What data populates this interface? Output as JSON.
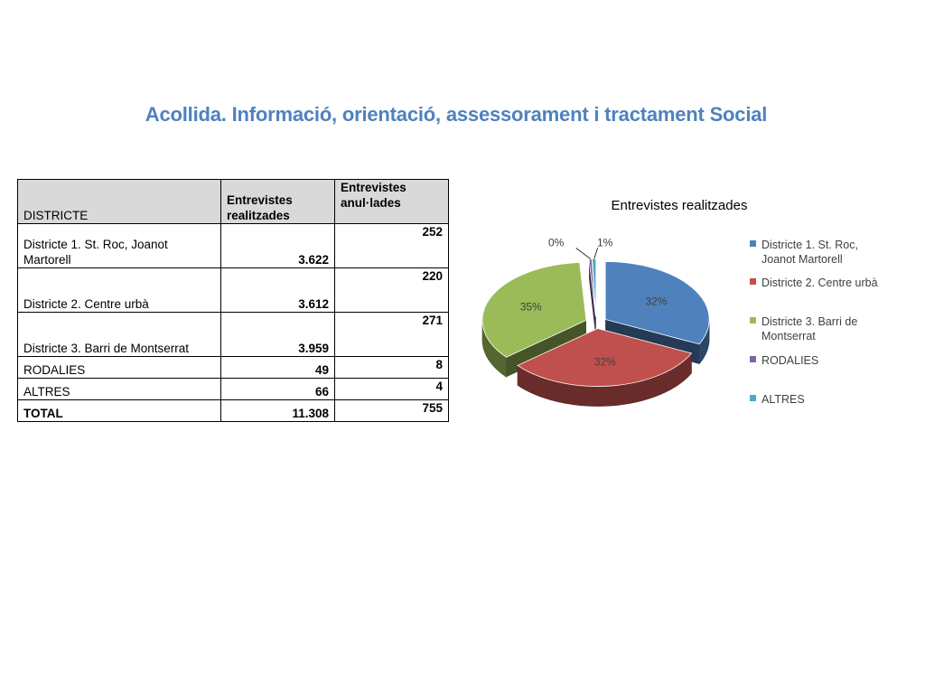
{
  "title": "Acollida. Informació, orientació, assessorament i tractament Social",
  "table": {
    "headers": [
      "DISTRICTE",
      "Entrevistes realitzades",
      "Entrevistes anul·lades"
    ],
    "rows": [
      {
        "district": "Districte 1. St. Roc, Joanot Martorell",
        "realitzades": "3.622",
        "anullades": "252"
      },
      {
        "district": "Districte 2. Centre urbà",
        "realitzades": "3.612",
        "anullades": "220"
      },
      {
        "district": "Districte 3. Barri de Montserrat",
        "realitzades": "3.959",
        "anullades": "271"
      },
      {
        "district": "RODALIES",
        "realitzades": "49",
        "anullades": "8"
      },
      {
        "district": "ALTRES",
        "realitzades": "66",
        "anullades": "4"
      },
      {
        "district": "TOTAL",
        "realitzades": "11.308",
        "anullades": "755"
      }
    ]
  },
  "chart_data": {
    "type": "pie",
    "title": "Entrevistes realitzades",
    "categories": [
      "Districte 1. St. Roc, Joanot Martorell",
      "Districte 2. Centre urbà",
      "Districte 3. Barri de Montserrat",
      "RODALIES",
      "ALTRES"
    ],
    "values": [
      3622,
      3612,
      3959,
      49,
      66
    ],
    "labels": [
      "32%",
      "32%",
      "35%",
      "0%",
      "1%"
    ],
    "colors": [
      "#4f81bd",
      "#c0504d",
      "#9bbb59",
      "#8064a2",
      "#4bacc6"
    ],
    "style": "3d-exploded",
    "legend": "right"
  }
}
